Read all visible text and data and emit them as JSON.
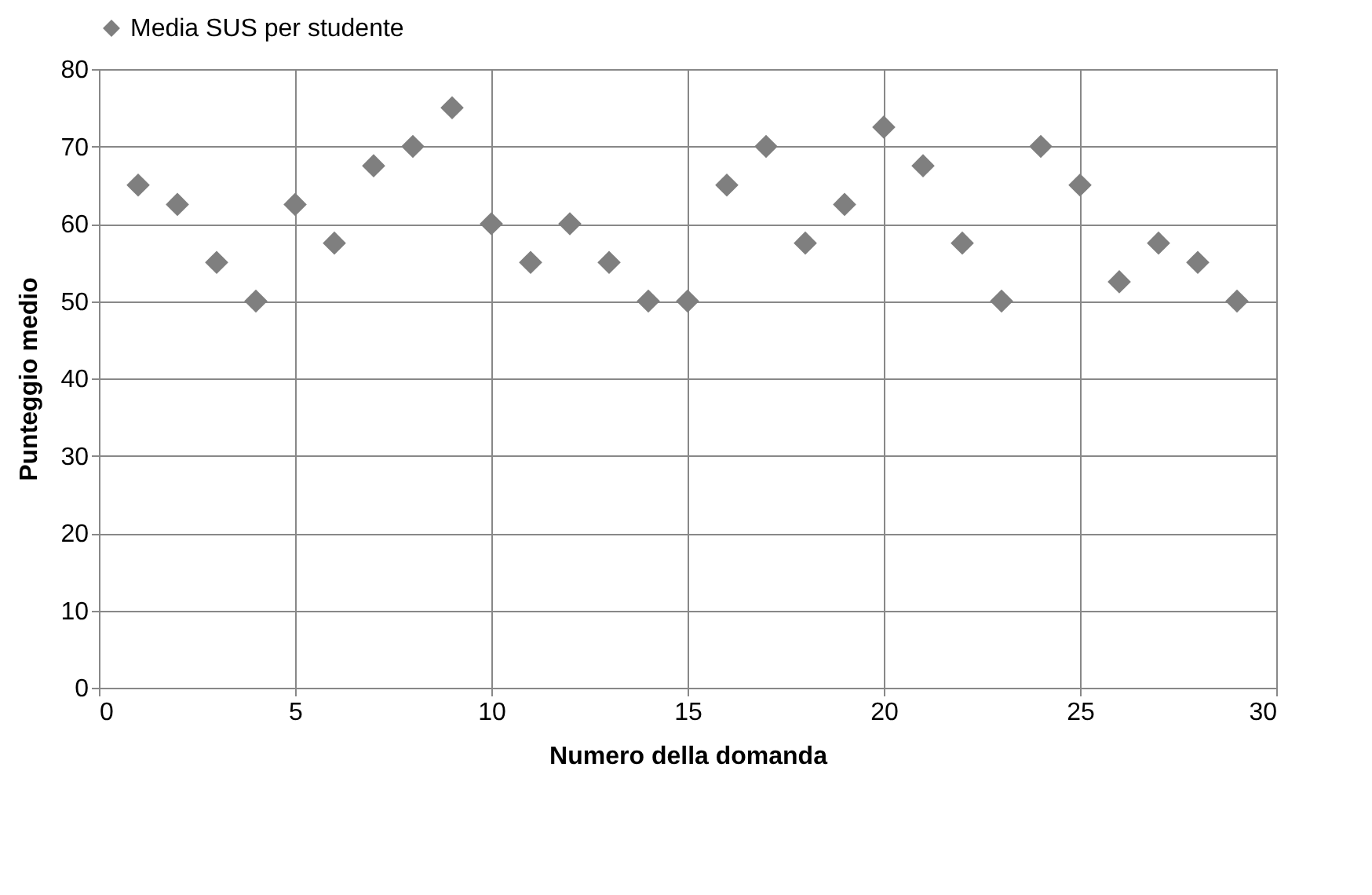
{
  "chart_data": {
    "type": "scatter",
    "x": [
      1,
      2,
      3,
      4,
      5,
      6,
      7,
      8,
      9,
      10,
      11,
      12,
      13,
      14,
      15,
      16,
      17,
      18,
      19,
      20,
      21,
      22,
      23,
      24,
      25,
      26,
      27,
      28,
      29
    ],
    "series": [
      {
        "name": "Media SUS per studente",
        "color": "#7f7f7f",
        "values": [
          65,
          62.5,
          55,
          50,
          62.5,
          57.5,
          67.5,
          70,
          75,
          60,
          55,
          60,
          55,
          50,
          50,
          65,
          70,
          57.5,
          62.5,
          72.5,
          67.5,
          57.5,
          50,
          70,
          65,
          52.5,
          57.5,
          55,
          50
        ]
      }
    ],
    "xlabel": "Numero della domanda",
    "ylabel": "Punteggio medio",
    "xlim": [
      0,
      30
    ],
    "xticks": [
      0,
      5,
      10,
      15,
      20,
      25,
      30
    ],
    "ylim": [
      0,
      80
    ],
    "yticks": [
      0,
      10,
      20,
      30,
      40,
      50,
      60,
      70,
      80
    ],
    "grid": true,
    "legend": "top",
    "marker": "diamond"
  }
}
